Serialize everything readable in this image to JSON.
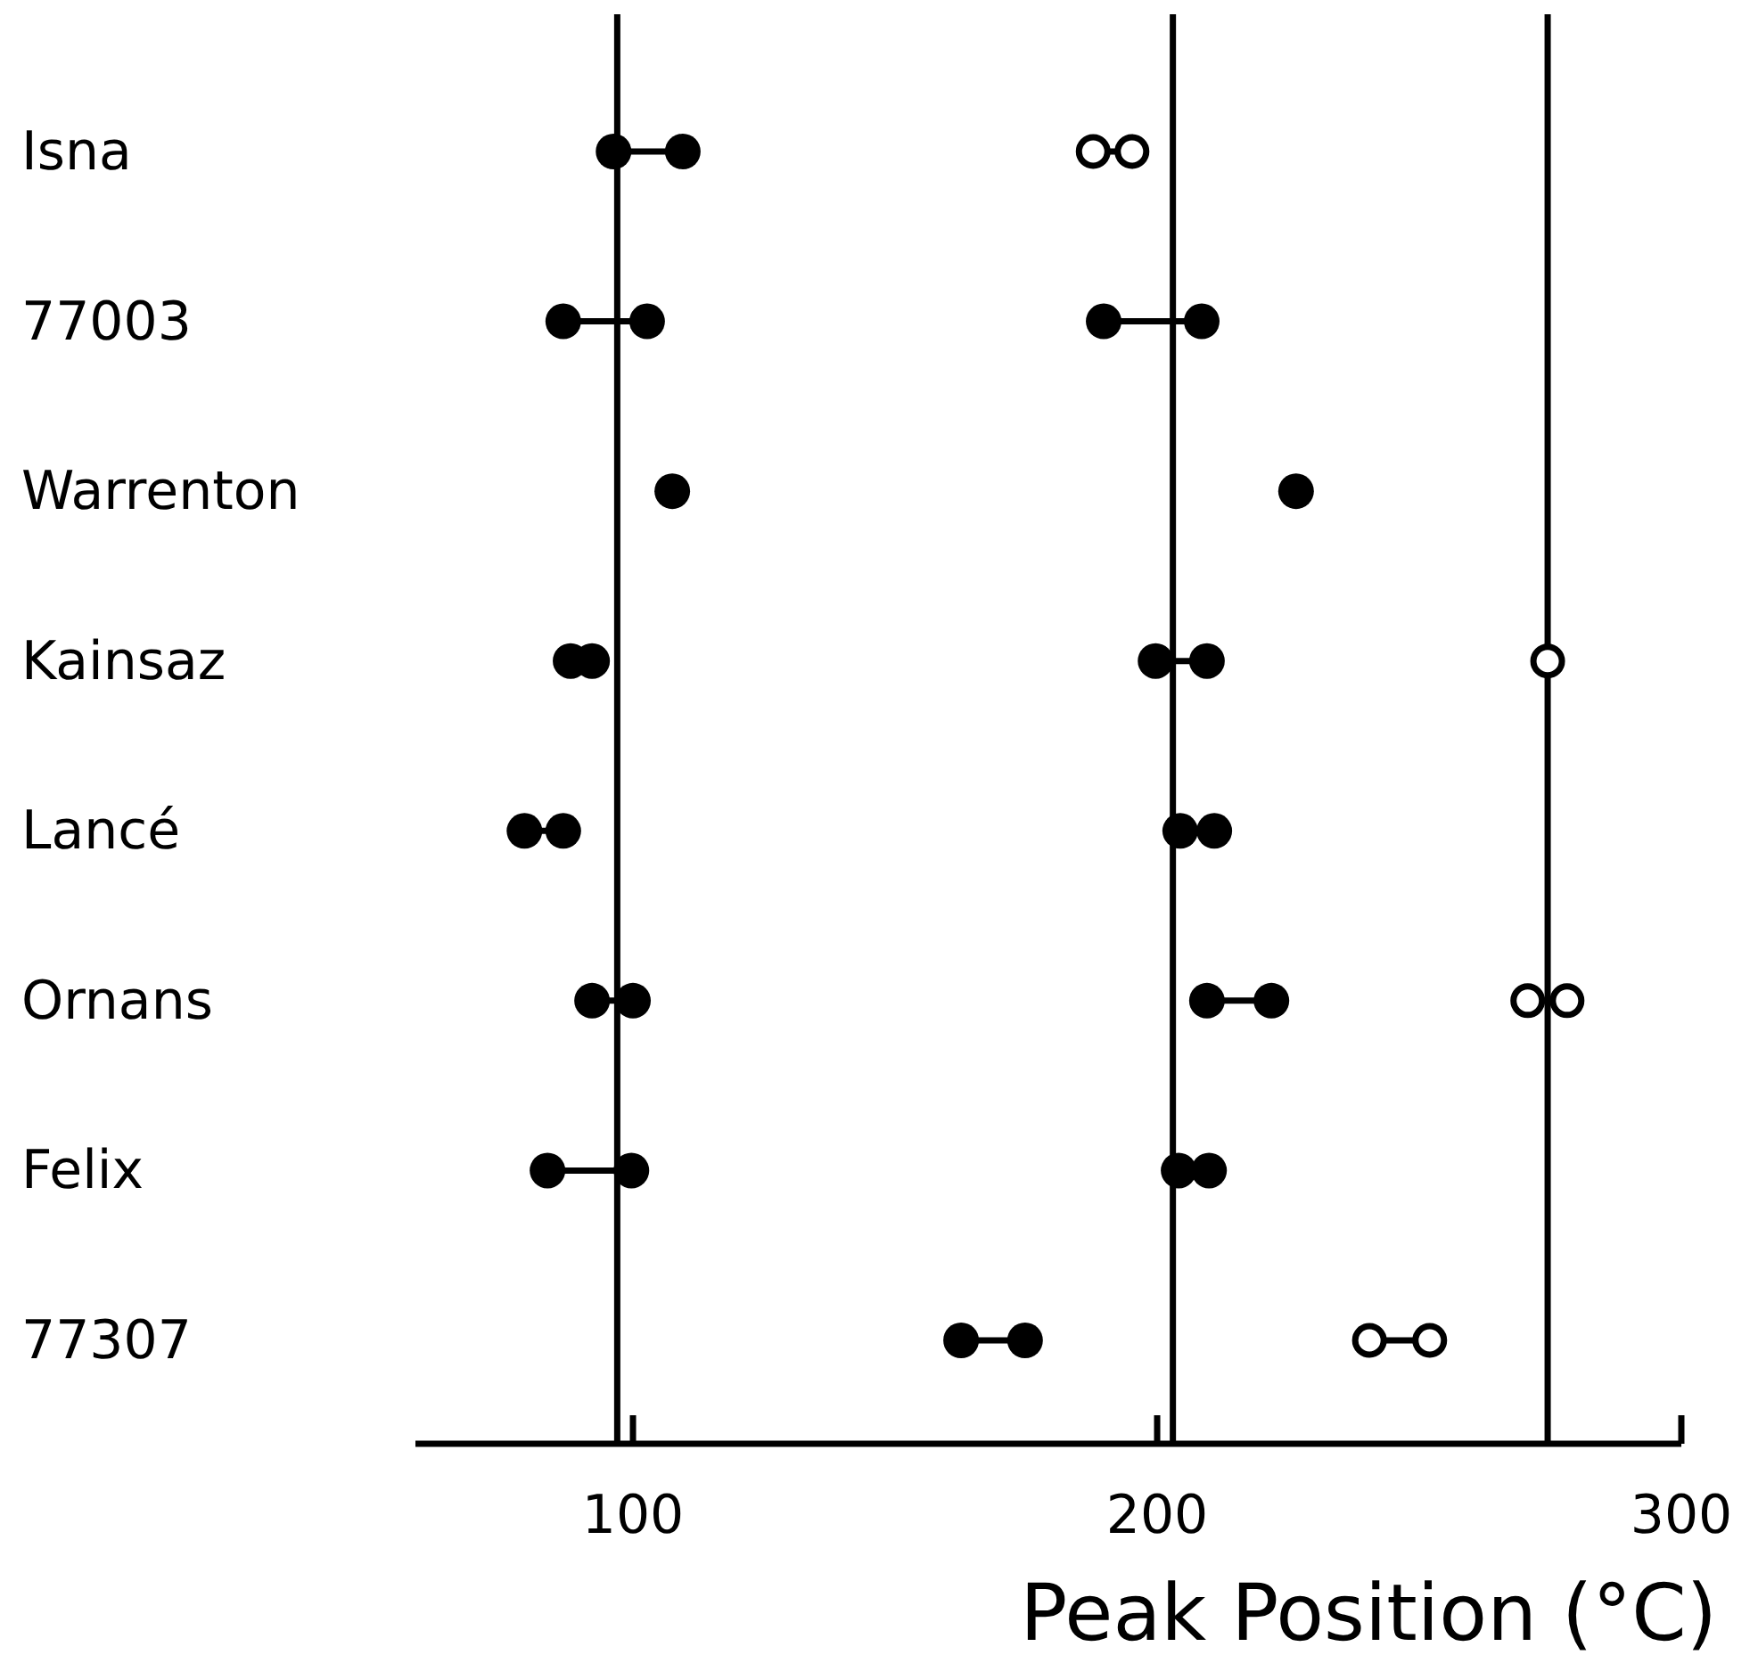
{
  "chart_data": {
    "type": "scatter",
    "orientation": "horizontal",
    "xlabel": "Peak Position (°C)",
    "categories": [
      "Isna",
      "77003",
      "Warrenton",
      "Kainsaz",
      "Lancé",
      "Ornans",
      "Felix",
      "77307"
    ],
    "series": [
      {
        "color": "#000000",
        "values": [
          96.3,
          86.7,
          107.5,
          88.1,
          79.3,
          92.2,
          83.7,
          162.6
        ]
      },
      {
        "color": "#000000",
        "values": [
          109.5,
          102.7,
          null,
          92.2,
          86.7,
          100,
          99.7,
          174.8
        ]
      },
      {
        "color": "#000000",
        "values": [
          null,
          189.8,
          226.5,
          199.7,
          204.4,
          209.5,
          204.1,
          null
        ]
      },
      {
        "color": "#000000",
        "values": [
          null,
          208.5,
          null,
          209.5,
          210.9,
          221.8,
          209.9,
          null
        ]
      },
      {
        "color": "#ffffff",
        "values": [
          187.8,
          null,
          null,
          274.5,
          null,
          270.7,
          null,
          240.5
        ]
      },
      {
        "color": "#ffffff",
        "values": [
          195.2,
          null,
          null,
          null,
          null,
          278.2,
          null,
          252
        ]
      }
    ],
    "marker": "circle",
    "xlim": [
      58.5,
      300
    ],
    "xticks": [
      100,
      200,
      300
    ],
    "grid": false,
    "ref_lines": [
      {
        "axis": "x",
        "value": 97
      },
      {
        "axis": "x",
        "value": 203
      },
      {
        "axis": "x",
        "value": 274.5
      }
    ]
  }
}
